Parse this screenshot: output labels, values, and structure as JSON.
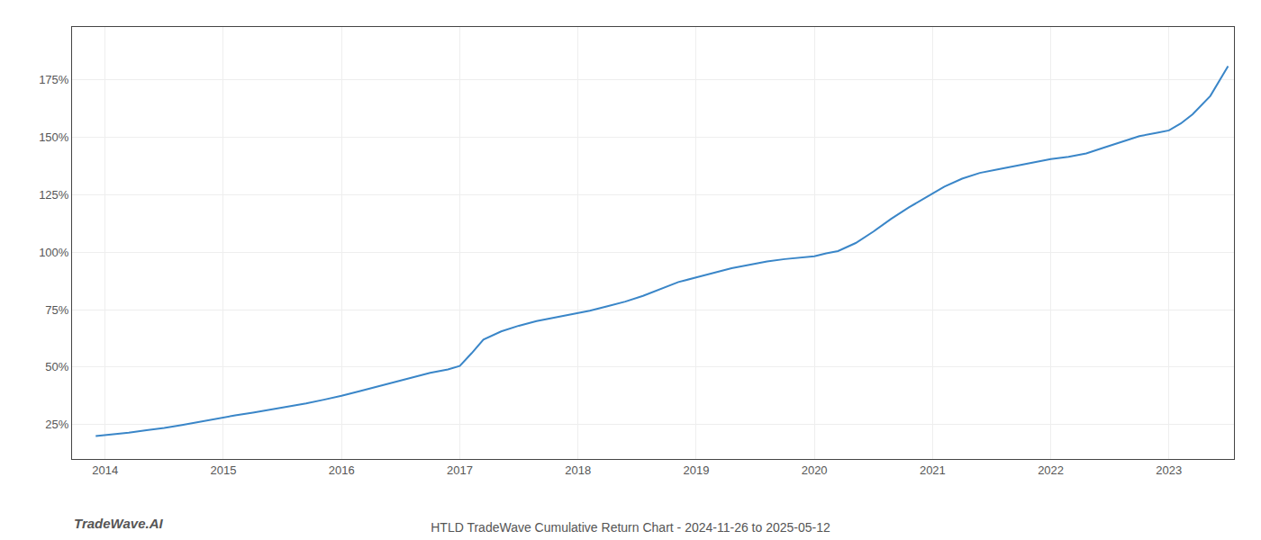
{
  "chart_data": {
    "type": "line",
    "title": "HTLD TradeWave Cumulative Return Chart - 2024-11-26 to 2025-05-12",
    "annotations": [
      "TradeWave.AI"
    ],
    "color": "#3a86c8",
    "x": [
      2013.92,
      2014.08,
      2014.2,
      2014.35,
      2014.5,
      2014.65,
      2014.8,
      2014.95,
      2015.1,
      2015.25,
      2015.4,
      2015.55,
      2015.7,
      2015.85,
      2016.0,
      2016.15,
      2016.3,
      2016.45,
      2016.6,
      2016.75,
      2016.9,
      2017.0,
      2017.1,
      2017.2,
      2017.35,
      2017.5,
      2017.65,
      2017.8,
      2017.95,
      2018.1,
      2018.25,
      2018.4,
      2018.55,
      2018.7,
      2018.85,
      2019.0,
      2019.15,
      2019.3,
      2019.45,
      2019.6,
      2019.75,
      2019.9,
      2020.0,
      2020.1,
      2020.2,
      2020.35,
      2020.5,
      2020.65,
      2020.8,
      2020.95,
      2021.1,
      2021.25,
      2021.4,
      2021.55,
      2021.7,
      2021.85,
      2022.0,
      2022.15,
      2022.3,
      2022.45,
      2022.6,
      2022.75,
      2022.9,
      2023.0,
      2023.1,
      2023.2,
      2023.35,
      2023.5
    ],
    "values": [
      20.0,
      20.8,
      21.5,
      22.5,
      23.5,
      24.8,
      26.2,
      27.8,
      29.0,
      30.2,
      31.5,
      32.8,
      34.2,
      35.8,
      37.5,
      39.5,
      41.5,
      43.5,
      45.5,
      47.5,
      49.0,
      50.5,
      56.0,
      62.0,
      65.5,
      68.0,
      70.0,
      71.5,
      73.0,
      74.5,
      76.5,
      78.5,
      81.0,
      84.0,
      87.0,
      89.0,
      91.0,
      93.0,
      94.5,
      96.0,
      97.0,
      97.8,
      98.2,
      99.5,
      100.5,
      104.0,
      109.0,
      114.5,
      119.5,
      124.0,
      128.5,
      132.0,
      134.5,
      136.0,
      137.5,
      139.0,
      140.5,
      141.5,
      143.0,
      145.5,
      148.0,
      150.5,
      152.0,
      153.0,
      156.0,
      160.0,
      168.0,
      181.0
    ],
    "xlim": [
      2013.72,
      2023.55
    ],
    "ylim": [
      10,
      198
    ],
    "xticks": [
      2014,
      2015,
      2016,
      2017,
      2018,
      2019,
      2020,
      2021,
      2022,
      2023
    ],
    "yticks": [
      {
        "value": 25,
        "label": "25%"
      },
      {
        "value": 50,
        "label": "50%"
      },
      {
        "value": 75,
        "label": "75%"
      },
      {
        "value": 100,
        "label": "100%"
      },
      {
        "value": 125,
        "label": "125%"
      },
      {
        "value": 150,
        "label": "150%"
      },
      {
        "value": 175,
        "label": "175%"
      }
    ],
    "grid": true
  }
}
